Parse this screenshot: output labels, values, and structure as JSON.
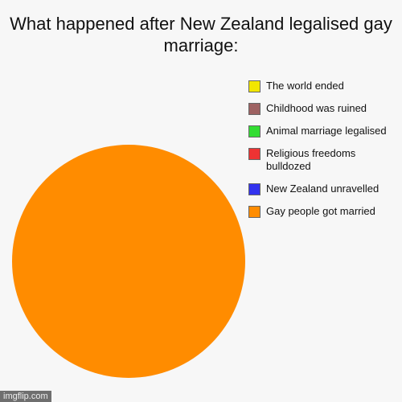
{
  "chart_data": {
    "type": "pie",
    "title": "What happened after New Zealand legalised gay marriage:",
    "categories": [
      "The world ended",
      "Childhood was ruined",
      "Animal marriage legalised",
      "Religious freedoms bulldozed",
      "New Zealand unravelled",
      "Gay people got married"
    ],
    "values": [
      0,
      0,
      0,
      0,
      0,
      100
    ],
    "colors": [
      "#f2e600",
      "#9e6262",
      "#33dd33",
      "#ee3333",
      "#3333ee",
      "#ff8c00"
    ],
    "legend": "right",
    "watermark": "imgflip.com"
  }
}
